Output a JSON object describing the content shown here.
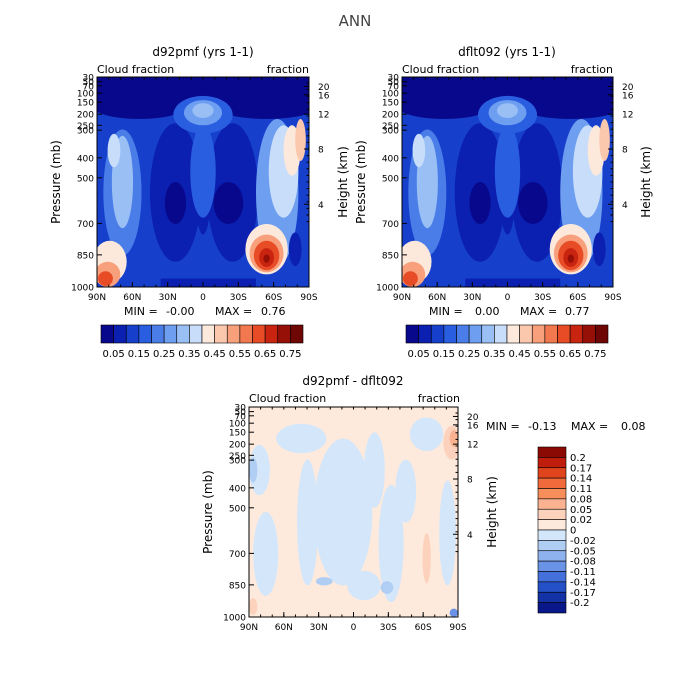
{
  "figure": {
    "suptitle": "ANN"
  },
  "chart_data": [
    {
      "type": "heatmap",
      "title": "d92pmf (yrs 1-1)",
      "left_label": "Cloud fraction",
      "right_label": "fraction",
      "ylabel": "Pressure (mb)",
      "ylabel_right": "Height (km)",
      "x_ticks": [
        "90N",
        "60N",
        "30N",
        "0",
        "30S",
        "60S",
        "90S"
      ],
      "y_ticks": [
        "30",
        "50",
        "70",
        "100",
        "150",
        "200",
        "250",
        "300",
        "400",
        "500",
        "700",
        "850",
        "1000"
      ],
      "y2_ticks": [
        "20",
        "16",
        "12",
        "8",
        "4"
      ],
      "stats": {
        "min_label": "MIN =",
        "min": "-0.00",
        "max_label": "MAX =",
        "max": "0.76"
      },
      "colorbar_labels": [
        "0.05",
        "0.15",
        "0.25",
        "0.35",
        "0.45",
        "0.55",
        "0.65",
        "0.75"
      ],
      "levels": [
        0.05,
        0.1,
        0.15,
        0.2,
        0.25,
        0.3,
        0.35,
        0.4,
        0.45,
        0.5,
        0.55,
        0.6,
        0.65,
        0.7,
        0.75
      ],
      "colors": [
        "#08088c",
        "#0b1fb0",
        "#1640cc",
        "#2a5ee0",
        "#4a7de8",
        "#6e9ef0",
        "#99bff5",
        "#c8ddfa",
        "#fde8dc",
        "#fbc8ae",
        "#f8a07c",
        "#f27850",
        "#e84c26",
        "#c82410",
        "#961008",
        "#6e0604"
      ]
    },
    {
      "type": "heatmap",
      "title": "dflt092 (yrs 1-1)",
      "left_label": "Cloud fraction",
      "right_label": "fraction",
      "ylabel": "Pressure (mb)",
      "ylabel_right": "Height (km)",
      "x_ticks": [
        "90N",
        "60N",
        "30N",
        "0",
        "30S",
        "60S",
        "90S"
      ],
      "y_ticks": [
        "30",
        "50",
        "70",
        "100",
        "150",
        "200",
        "250",
        "300",
        "400",
        "500",
        "700",
        "850",
        "1000"
      ],
      "y2_ticks": [
        "20",
        "16",
        "12",
        "8",
        "4"
      ],
      "stats": {
        "min_label": "MIN =",
        "min": "0.00",
        "max_label": "MAX =",
        "max": "0.77"
      },
      "colorbar_labels": [
        "0.05",
        "0.15",
        "0.25",
        "0.35",
        "0.45",
        "0.55",
        "0.65",
        "0.75"
      ],
      "levels": [
        0.05,
        0.1,
        0.15,
        0.2,
        0.25,
        0.3,
        0.35,
        0.4,
        0.45,
        0.5,
        0.55,
        0.6,
        0.65,
        0.7,
        0.75
      ],
      "colors": [
        "#08088c",
        "#0b1fb0",
        "#1640cc",
        "#2a5ee0",
        "#4a7de8",
        "#6e9ef0",
        "#99bff5",
        "#c8ddfa",
        "#fde8dc",
        "#fbc8ae",
        "#f8a07c",
        "#f27850",
        "#e84c26",
        "#c82410",
        "#961008",
        "#6e0604"
      ]
    },
    {
      "type": "heatmap",
      "title": "d92pmf - dflt092",
      "left_label": "Cloud fraction",
      "right_label": "fraction",
      "ylabel": "Pressure (mb)",
      "ylabel_right": "Height (km)",
      "x_ticks": [
        "90N",
        "60N",
        "30N",
        "0",
        "30S",
        "60S",
        "90S"
      ],
      "y_ticks": [
        "30",
        "50",
        "70",
        "100",
        "150",
        "200",
        "250",
        "300",
        "400",
        "500",
        "700",
        "850",
        "1000"
      ],
      "y2_ticks": [
        "20",
        "16",
        "12",
        "8",
        "4"
      ],
      "stats": {
        "min_label": "MIN =",
        "min": "-0.13",
        "max_label": "MAX =",
        "max": "0.08"
      },
      "colorbar_labels": [
        "0.2",
        "0.17",
        "0.14",
        "0.11",
        "0.08",
        "0.05",
        "0.02",
        "0",
        "-0.02",
        "-0.05",
        "-0.08",
        "-0.11",
        "-0.14",
        "-0.17",
        "-0.2"
      ],
      "colors": [
        "#8c0a04",
        "#c01e0c",
        "#e0441c",
        "#f06a3c",
        "#f78e5c",
        "#fab290",
        "#fcd2bc",
        "#feeadc",
        "#d4e6fa",
        "#b0cdf4",
        "#8eb2ee",
        "#6a92e6",
        "#4470dc",
        "#2450c8",
        "#1232a6",
        "#08188a"
      ]
    }
  ]
}
